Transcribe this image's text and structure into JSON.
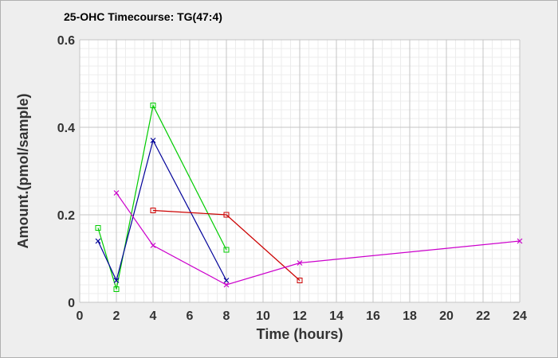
{
  "chart_data": {
    "type": "line",
    "title": "25-OHC Timecourse: TG(47:4)",
    "xlabel": "Time (hours)",
    "ylabel": "Amount.(pmol/sample)",
    "xlim": [
      0,
      24
    ],
    "ylim": [
      0,
      0.6
    ],
    "x_ticks": [
      "0",
      "2",
      "4",
      "6",
      "8",
      "10",
      "12",
      "14",
      "16",
      "18",
      "20",
      "22",
      "24"
    ],
    "y_ticks": [
      "0",
      "0.2",
      "0.4",
      "0.6"
    ],
    "grid": true,
    "series": [
      {
        "color": "#00cc00",
        "marker": "square",
        "x": [
          1,
          2,
          4,
          8
        ],
        "y": [
          0.17,
          0.03,
          0.45,
          0.12
        ]
      },
      {
        "color": "#000099",
        "marker": "x",
        "x": [
          1,
          2,
          4,
          8
        ],
        "y": [
          0.14,
          0.05,
          0.37,
          0.05
        ]
      },
      {
        "color": "#cc0000",
        "marker": "square",
        "x": [
          4,
          8,
          12
        ],
        "y": [
          0.21,
          0.2,
          0.05
        ]
      },
      {
        "color": "#cc00cc",
        "marker": "x",
        "x": [
          2,
          4,
          8,
          12,
          24
        ],
        "y": [
          0.25,
          0.13,
          0.04,
          0.09,
          0.14
        ]
      }
    ]
  }
}
